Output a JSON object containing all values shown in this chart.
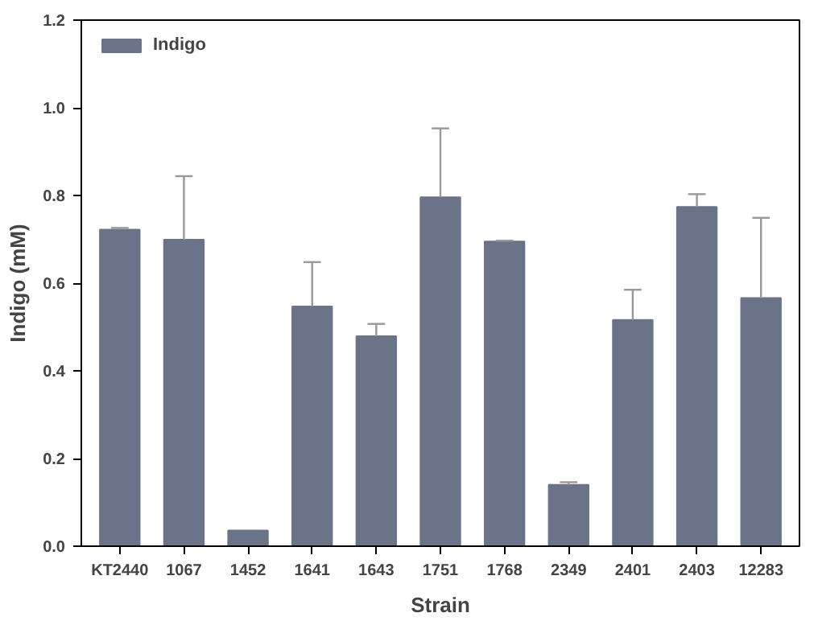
{
  "chart_data": {
    "type": "bar",
    "xlabel": "Strain",
    "ylabel": "Indigo (mM)",
    "categories": [
      "KT2440",
      "1067",
      "1452",
      "1641",
      "1643",
      "1751",
      "1768",
      "2349",
      "2401",
      "2403",
      "12283"
    ],
    "series": [
      {
        "name": "Indigo",
        "color": "#6b7389",
        "values": [
          0.722,
          0.699,
          0.036,
          0.547,
          0.479,
          0.796,
          0.695,
          0.14,
          0.516,
          0.774,
          0.566
        ],
        "errors": [
          [
            0.722,
            0.726
          ],
          [
            0.699,
            0.844
          ],
          null,
          [
            0.547,
            0.648
          ],
          [
            0.479,
            0.507
          ],
          [
            0.796,
            0.953
          ],
          [
            0.695,
            0.697
          ],
          [
            0.14,
            0.146
          ],
          [
            0.516,
            0.585
          ],
          [
            0.774,
            0.803
          ],
          [
            0.566,
            0.749
          ]
        ]
      }
    ],
    "ylim": [
      0,
      1.2
    ],
    "yticks": [
      {
        "value": 0,
        "label": "0.0"
      },
      {
        "value": 0.2,
        "label": "0.2"
      },
      {
        "value": 0.4,
        "label": "0.4"
      },
      {
        "value": 0.6,
        "label": "0.6"
      },
      {
        "value": 0.8,
        "label": "0.8"
      },
      {
        "value": 1.0,
        "label": "1.0"
      },
      {
        "value": 1.2,
        "label": "1.2"
      }
    ],
    "grid": false,
    "legend": "top left"
  }
}
